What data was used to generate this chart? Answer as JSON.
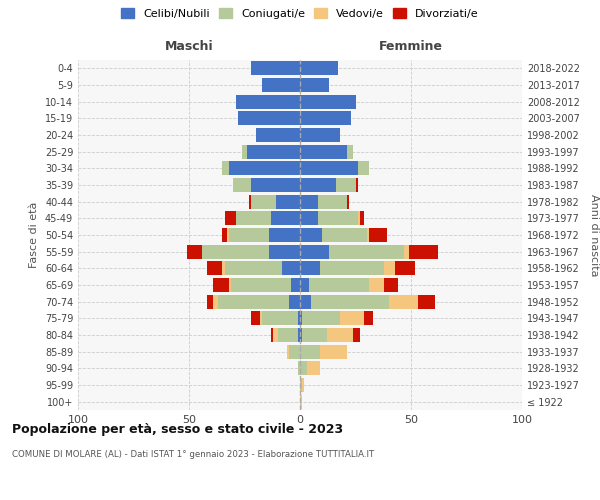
{
  "age_groups": [
    "100+",
    "95-99",
    "90-94",
    "85-89",
    "80-84",
    "75-79",
    "70-74",
    "65-69",
    "60-64",
    "55-59",
    "50-54",
    "45-49",
    "40-44",
    "35-39",
    "30-34",
    "25-29",
    "20-24",
    "15-19",
    "10-14",
    "5-9",
    "0-4"
  ],
  "birth_years": [
    "≤ 1922",
    "1923-1927",
    "1928-1932",
    "1933-1937",
    "1938-1942",
    "1943-1947",
    "1948-1952",
    "1953-1957",
    "1958-1962",
    "1963-1967",
    "1968-1972",
    "1973-1977",
    "1978-1982",
    "1983-1987",
    "1988-1992",
    "1993-1997",
    "1998-2002",
    "2003-2007",
    "2008-2012",
    "2013-2017",
    "2018-2022"
  ],
  "colors": {
    "celibi": "#4472c4",
    "coniugati": "#b5c99a",
    "vedovi": "#f5c77e",
    "divorziati": "#cc1100"
  },
  "maschi": {
    "celibi": [
      0,
      0,
      0,
      0,
      1,
      1,
      5,
      4,
      8,
      14,
      14,
      13,
      11,
      22,
      32,
      24,
      20,
      28,
      29,
      17,
      22
    ],
    "coniugati": [
      0,
      0,
      1,
      5,
      9,
      16,
      32,
      27,
      26,
      30,
      18,
      16,
      11,
      8,
      3,
      2,
      0,
      0,
      0,
      0,
      0
    ],
    "vedovi": [
      0,
      0,
      0,
      1,
      2,
      1,
      2,
      1,
      1,
      0,
      1,
      0,
      0,
      0,
      0,
      0,
      0,
      0,
      0,
      0,
      0
    ],
    "divorziati": [
      0,
      0,
      0,
      0,
      1,
      4,
      3,
      7,
      7,
      7,
      2,
      5,
      1,
      0,
      0,
      0,
      0,
      0,
      0,
      0,
      0
    ]
  },
  "femmine": {
    "celibi": [
      0,
      0,
      0,
      0,
      1,
      1,
      5,
      4,
      9,
      13,
      10,
      8,
      8,
      16,
      26,
      21,
      18,
      23,
      25,
      13,
      17
    ],
    "coniugati": [
      0,
      1,
      3,
      9,
      11,
      17,
      35,
      27,
      29,
      34,
      20,
      18,
      13,
      9,
      5,
      3,
      0,
      0,
      0,
      0,
      0
    ],
    "vedovi": [
      1,
      1,
      6,
      12,
      12,
      11,
      13,
      7,
      5,
      2,
      1,
      1,
      0,
      0,
      0,
      0,
      0,
      0,
      0,
      0,
      0
    ],
    "divorziati": [
      0,
      0,
      0,
      0,
      3,
      4,
      8,
      6,
      9,
      13,
      8,
      2,
      1,
      1,
      0,
      0,
      0,
      0,
      0,
      0,
      0
    ]
  },
  "xlim": 100,
  "title": "Popolazione per età, sesso e stato civile - 2023",
  "subtitle": "COMUNE DI MOLARE (AL) - Dati ISTAT 1° gennaio 2023 - Elaborazione TUTTITALIA.IT",
  "ylabel": "Fasce di età",
  "ylabel_right": "Anni di nascita",
  "xlabel_left": "Maschi",
  "xlabel_right": "Femmine",
  "legend_labels": [
    "Celibi/Nubili",
    "Coniugati/e",
    "Vedovi/e",
    "Divorziati/e"
  ]
}
